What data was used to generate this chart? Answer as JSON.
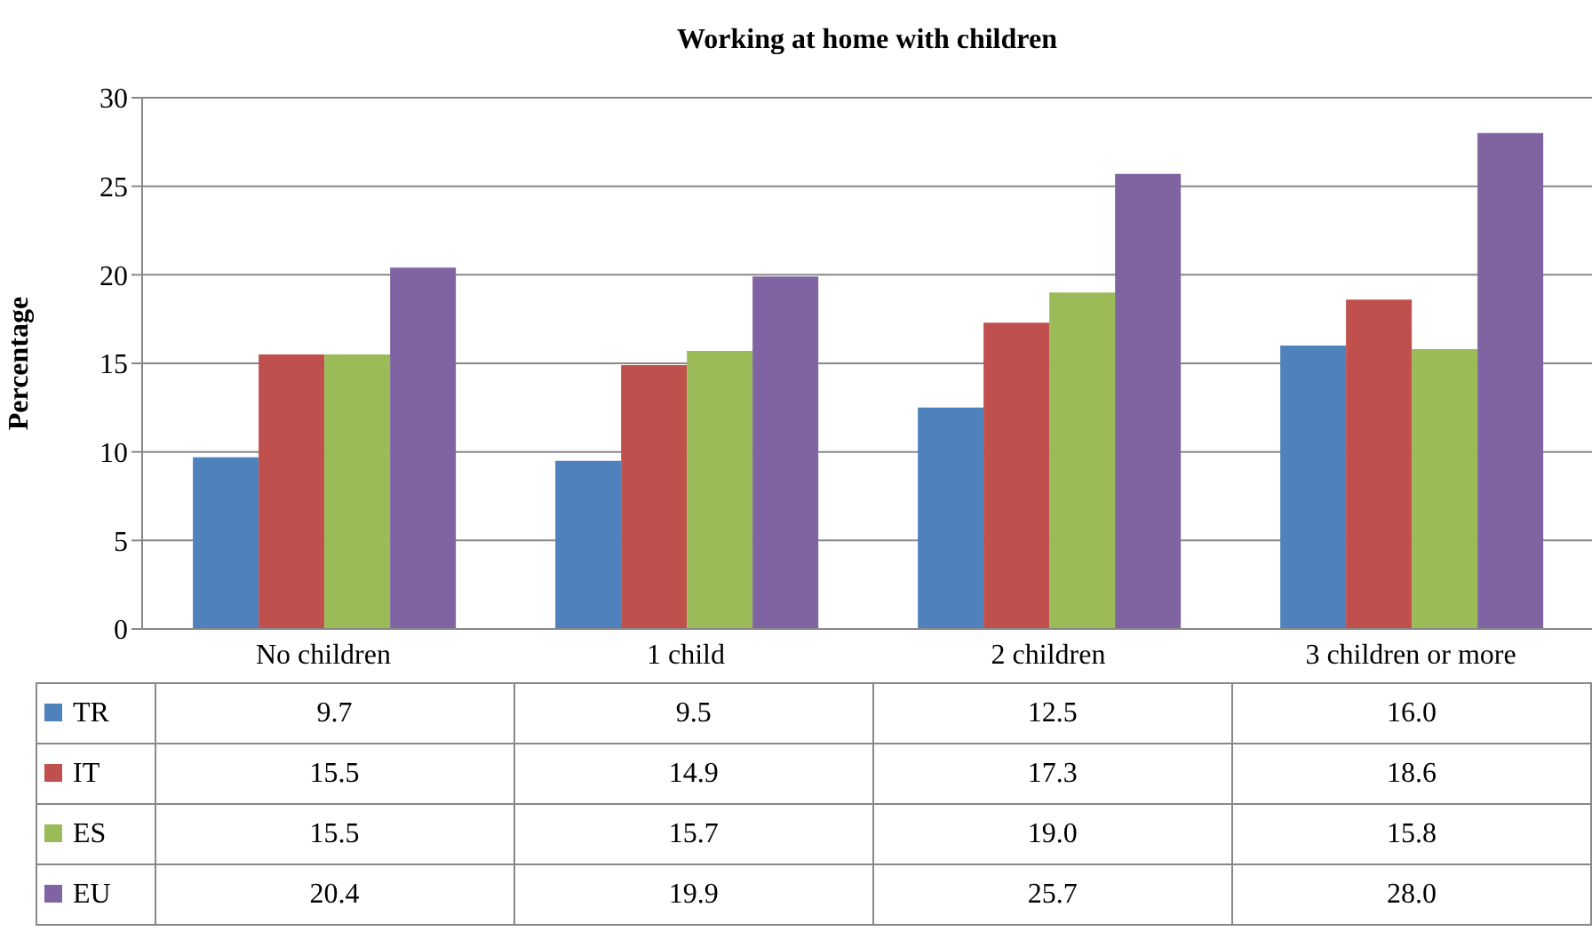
{
  "chart_data": {
    "type": "bar",
    "title": "Working at home with children",
    "ylabel": "Percentage",
    "categories": [
      "No children",
      "1 child",
      "2 children",
      "3 children or more"
    ],
    "series": [
      {
        "name": "TR",
        "color": "#4f81bd",
        "values": [
          9.7,
          9.5,
          12.5,
          16.0
        ],
        "value_labels": [
          "9.7",
          "9.5",
          "12.5",
          "16.0"
        ]
      },
      {
        "name": "IT",
        "color": "#c0504d",
        "values": [
          15.5,
          14.9,
          17.3,
          18.6
        ],
        "value_labels": [
          "15.5",
          "14.9",
          "17.3",
          "18.6"
        ]
      },
      {
        "name": "ES",
        "color": "#9bbb59",
        "values": [
          15.5,
          15.7,
          19.0,
          15.8
        ],
        "value_labels": [
          "15.5",
          "15.7",
          "19.0",
          "15.8"
        ]
      },
      {
        "name": "EU",
        "color": "#8064a2",
        "values": [
          20.4,
          19.9,
          25.7,
          28.0
        ],
        "value_labels": [
          "20.4",
          "19.9",
          "25.7",
          "28.0"
        ]
      }
    ],
    "ylim": [
      0,
      30
    ],
    "yticks": [
      0,
      5,
      10,
      15,
      20,
      25,
      30
    ],
    "grid": "y",
    "legend": "bottom"
  }
}
